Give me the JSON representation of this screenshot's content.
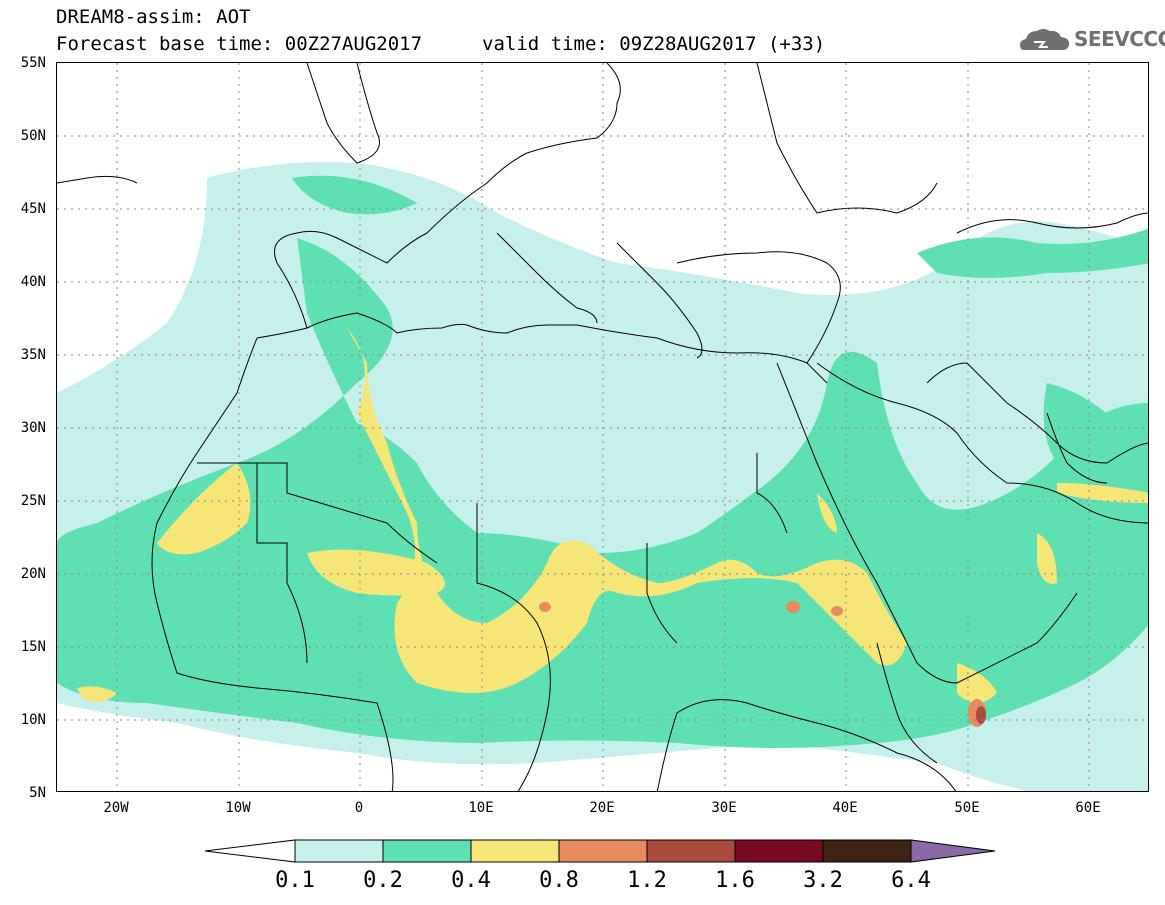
{
  "header": {
    "title_line1": "DREAM8-assim: AOT",
    "title_line2": "Forecast base time: 00Z27AUG2017",
    "valid_time": "valid time: 09Z28AUG2017 (+33)",
    "logo_text": "SEEVCCC"
  },
  "map": {
    "variable": "AOT",
    "lon_range": [
      -25,
      65
    ],
    "lat_range": [
      5,
      55
    ],
    "lat_labels": [
      "55N",
      "50N",
      "45N",
      "40N",
      "35N",
      "30N",
      "25N",
      "20N",
      "15N",
      "10N",
      "5N"
    ],
    "lon_labels": [
      "20W",
      "10W",
      "0",
      "10E",
      "20E",
      "30E",
      "40E",
      "50E",
      "60E"
    ],
    "grid": "dotted"
  },
  "colorbar": {
    "labels": [
      "0.1",
      "0.2",
      "0.4",
      "0.8",
      "1.2",
      "1.6",
      "3.2",
      "6.4"
    ],
    "colors": [
      "#ffffff",
      "#c6f0ec",
      "#5fe0b2",
      "#f6e678",
      "#e9895f",
      "#a94c3e",
      "#7a0a24",
      "#3e2413",
      "#8a6aa6"
    ]
  }
}
